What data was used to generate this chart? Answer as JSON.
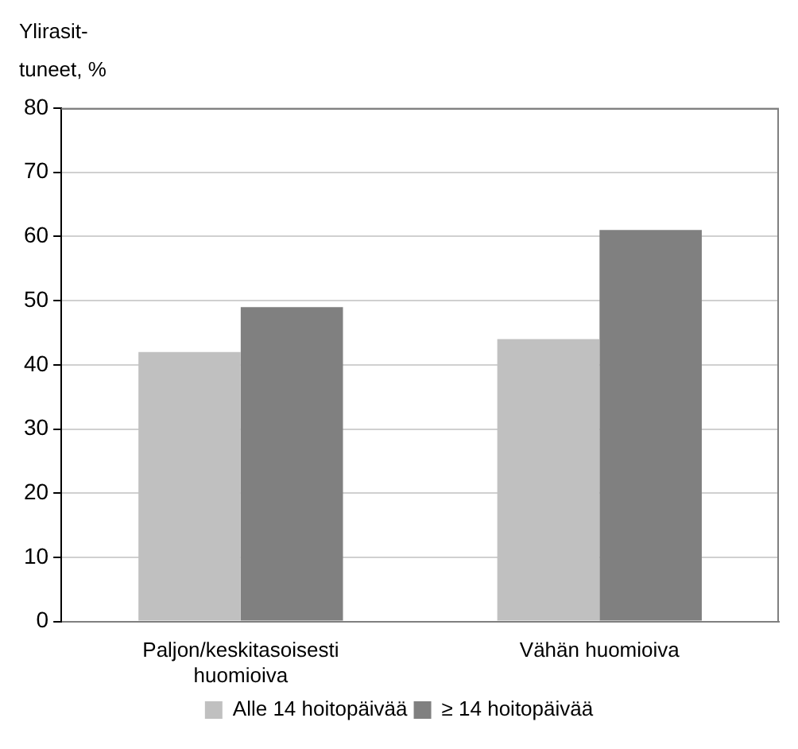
{
  "chart_data": {
    "type": "bar",
    "ylabel": "Ylirasit-\ntuneet, %",
    "categories": [
      "Paljon/keskitasoisesti huomioiva",
      "Vähän huomioiva"
    ],
    "series": [
      {
        "name": "Alle 14 hoitopäivää",
        "color": "#c0c0c0",
        "values": [
          42,
          44
        ]
      },
      {
        "name": "≥ 14 hoitopäivää",
        "color": "#808080",
        "values": [
          49,
          61
        ]
      }
    ],
    "ylim": [
      0,
      80
    ],
    "yticks": [
      0,
      10,
      20,
      30,
      40,
      50,
      60,
      70,
      80
    ],
    "grid": "y",
    "legend": "bottom"
  }
}
